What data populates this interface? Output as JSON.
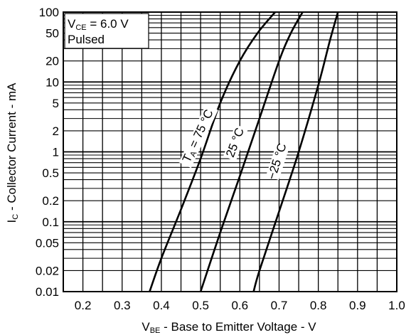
{
  "chart_data": {
    "type": "line",
    "title": "",
    "x_axis": {
      "label": "VBE - Base to Emitter Voltage - V",
      "label_parts": [
        "V",
        "BE",
        " - Base to Emitter Voltage - V"
      ],
      "range": [
        0.15,
        1.0
      ],
      "ticks": [
        0.2,
        0.3,
        0.4,
        0.5,
        0.6,
        0.7,
        0.8,
        0.9,
        1.0
      ],
      "tick_labels": [
        "0.2",
        "0.3",
        "0.4",
        "0.5",
        "0.6",
        "0.7",
        "0.8",
        "0.9",
        "1.0"
      ],
      "minor_step": 0.05
    },
    "y_axis": {
      "label": "IC - Collector Current - mA",
      "label_parts": [
        "I",
        "C",
        " - Collector Current - mA"
      ],
      "scale": "log",
      "range": [
        0.01,
        100
      ],
      "ticks": [
        0.01,
        0.02,
        0.05,
        0.1,
        0.2,
        0.5,
        1,
        2,
        5,
        10,
        20,
        50,
        100
      ],
      "tick_labels": [
        "0.01",
        "0.02",
        "0.05",
        "0.1",
        "0.2",
        "0.5",
        "1",
        "2",
        "5",
        "10",
        "20",
        "50",
        "100"
      ]
    },
    "grid": true,
    "legend": "none",
    "conditions": {
      "line1_parts": [
        "V",
        "CE",
        " = 6.0 V"
      ],
      "line2": "Pulsed"
    },
    "series": [
      {
        "name": "TA = 75 °C",
        "label_parts": [
          "T",
          "A",
          " = 75 °C"
        ],
        "points": [
          [
            0.37,
            0.01
          ],
          [
            0.4,
            0.03
          ],
          [
            0.45,
            0.15
          ],
          [
            0.5,
            0.8
          ],
          [
            0.55,
            5
          ],
          [
            0.6,
            20
          ],
          [
            0.645,
            50
          ],
          [
            0.69,
            100
          ]
        ]
      },
      {
        "name": "25 °C",
        "label_parts": [
          "25 °C"
        ],
        "points": [
          [
            0.5,
            0.01
          ],
          [
            0.55,
            0.07
          ],
          [
            0.6,
            0.45
          ],
          [
            0.65,
            3
          ],
          [
            0.7,
            20
          ],
          [
            0.73,
            50
          ],
          [
            0.76,
            100
          ]
        ]
      },
      {
        "name": "−25 °C",
        "label_parts": [
          "−25 °C"
        ],
        "points": [
          [
            0.635,
            0.01
          ],
          [
            0.65,
            0.02
          ],
          [
            0.7,
            0.14
          ],
          [
            0.75,
            1.0
          ],
          [
            0.8,
            9
          ],
          [
            0.83,
            40
          ],
          [
            0.85,
            100
          ]
        ]
      }
    ]
  }
}
